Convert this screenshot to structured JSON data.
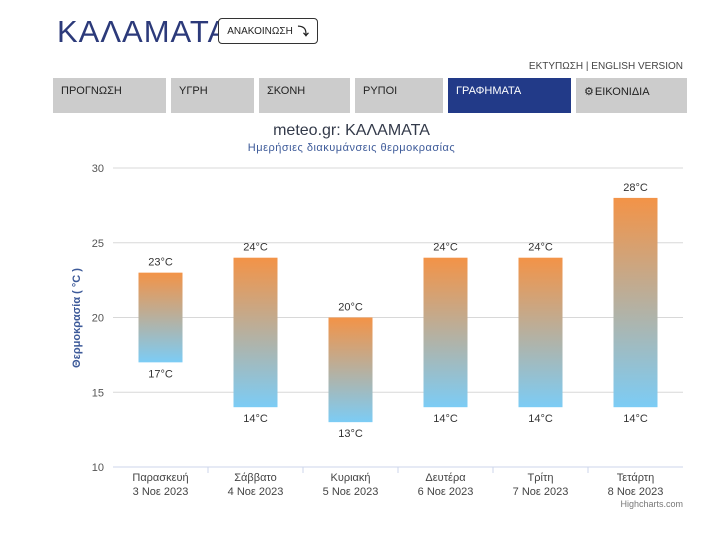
{
  "page": {
    "city": "ΚΑΛΑΜΑΤΑ",
    "announce_label": "ΑΝΑΚΟΙΝΩΣΗ",
    "announce_icon": "arrow-down-right-icon",
    "print_link": "ΕΚΤΥΠΩΣΗ",
    "link_separator": "|",
    "english_link": "ENGLISH VERSION"
  },
  "nav": {
    "tabs": [
      {
        "label": "ΠΡΟΓΝΩΣΗ"
      },
      {
        "label": "ΥΓΡΗ"
      },
      {
        "label": "ΣΚΟΝΗ"
      },
      {
        "label": "ΡΥΠΟΙ"
      },
      {
        "label": "ΓΡΑΦΗΜΑΤΑ"
      },
      {
        "label": "ΕΙΚΟΝΙΔΙΑ",
        "icon": "gear-icon"
      }
    ],
    "active_index": 4,
    "colors": {
      "active": "#223a88",
      "inactive": "#cccccc"
    }
  },
  "chart_data": {
    "type": "bar",
    "title": "meteo.gr: ΚΑΛΑΜΑΤΑ",
    "subtitle": "Ημερήσιες διακυμάνσεις θερμοκρασίας",
    "ylabel": "Θερμοκρασία ( °C )",
    "ylim": [
      10,
      30
    ],
    "yticks": [
      10,
      15,
      20,
      25,
      30
    ],
    "grid": true,
    "unit": "°C",
    "categories": [
      {
        "day": "Παρασκευή",
        "date": "3 Νοε 2023"
      },
      {
        "day": "Σάββατο",
        "date": "4 Νοε 2023"
      },
      {
        "day": "Κυριακή",
        "date": "5 Νοε 2023"
      },
      {
        "day": "Δευτέρα",
        "date": "6 Νοε 2023"
      },
      {
        "day": "Τρίτη",
        "date": "7 Νοε 2023"
      },
      {
        "day": "Τετάρτη",
        "date": "8 Νοε 2023"
      }
    ],
    "min": [
      17,
      14,
      13,
      14,
      14,
      14
    ],
    "max": [
      23,
      24,
      20,
      24,
      24,
      28
    ],
    "colors": {
      "top": "#f39347",
      "bottom": "#7cccf5"
    }
  },
  "credits": "Highcharts.com"
}
